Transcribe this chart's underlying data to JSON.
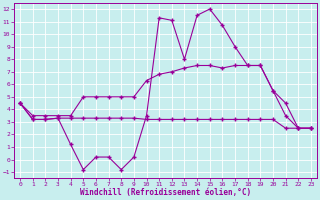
{
  "bg_color": "#c8eeee",
  "line_color": "#990099",
  "grid_color": "#ffffff",
  "xlabel": "Windchill (Refroidissement éolien,°C)",
  "xlim_min": -0.5,
  "xlim_max": 23.5,
  "ylim_min": -1.5,
  "ylim_max": 12.5,
  "xticks": [
    0,
    1,
    2,
    3,
    4,
    5,
    6,
    7,
    8,
    9,
    10,
    11,
    12,
    13,
    14,
    15,
    16,
    17,
    18,
    19,
    20,
    21,
    22,
    23
  ],
  "yticks": [
    -1,
    0,
    1,
    2,
    3,
    4,
    5,
    6,
    7,
    8,
    9,
    10,
    11,
    12
  ],
  "line_top_x": [
    0,
    1,
    2,
    3,
    4,
    5,
    6,
    7,
    8,
    9,
    10,
    11,
    12,
    13,
    14,
    15,
    16,
    17,
    18,
    19,
    20,
    21,
    22,
    23
  ],
  "line_top_y": [
    4.5,
    3.2,
    3.2,
    3.3,
    1.2,
    -0.8,
    0.2,
    0.2,
    -0.8,
    0.2,
    3.5,
    11.3,
    11.1,
    8.0,
    11.5,
    12.0,
    10.7,
    9.0,
    7.5,
    7.5,
    5.5,
    4.5,
    2.5,
    2.5
  ],
  "line_mid_x": [
    0,
    1,
    2,
    3,
    4,
    5,
    6,
    7,
    8,
    9,
    10,
    11,
    12,
    13,
    14,
    15,
    16,
    17,
    18,
    19,
    20,
    21,
    22,
    23
  ],
  "line_mid_y": [
    4.5,
    3.5,
    3.5,
    3.5,
    3.5,
    5.0,
    5.0,
    5.0,
    5.0,
    5.0,
    6.3,
    6.8,
    7.0,
    7.3,
    7.5,
    7.5,
    7.3,
    7.5,
    7.5,
    7.5,
    5.5,
    3.5,
    2.5,
    2.5
  ],
  "line_bot_x": [
    0,
    1,
    2,
    3,
    4,
    5,
    6,
    7,
    8,
    9,
    10,
    11,
    12,
    13,
    14,
    15,
    16,
    17,
    18,
    19,
    20,
    21,
    22,
    23
  ],
  "line_bot_y": [
    4.5,
    3.2,
    3.2,
    3.3,
    3.3,
    3.3,
    3.3,
    3.3,
    3.3,
    3.3,
    3.2,
    3.2,
    3.2,
    3.2,
    3.2,
    3.2,
    3.2,
    3.2,
    3.2,
    3.2,
    3.2,
    2.5,
    2.5,
    2.5
  ]
}
